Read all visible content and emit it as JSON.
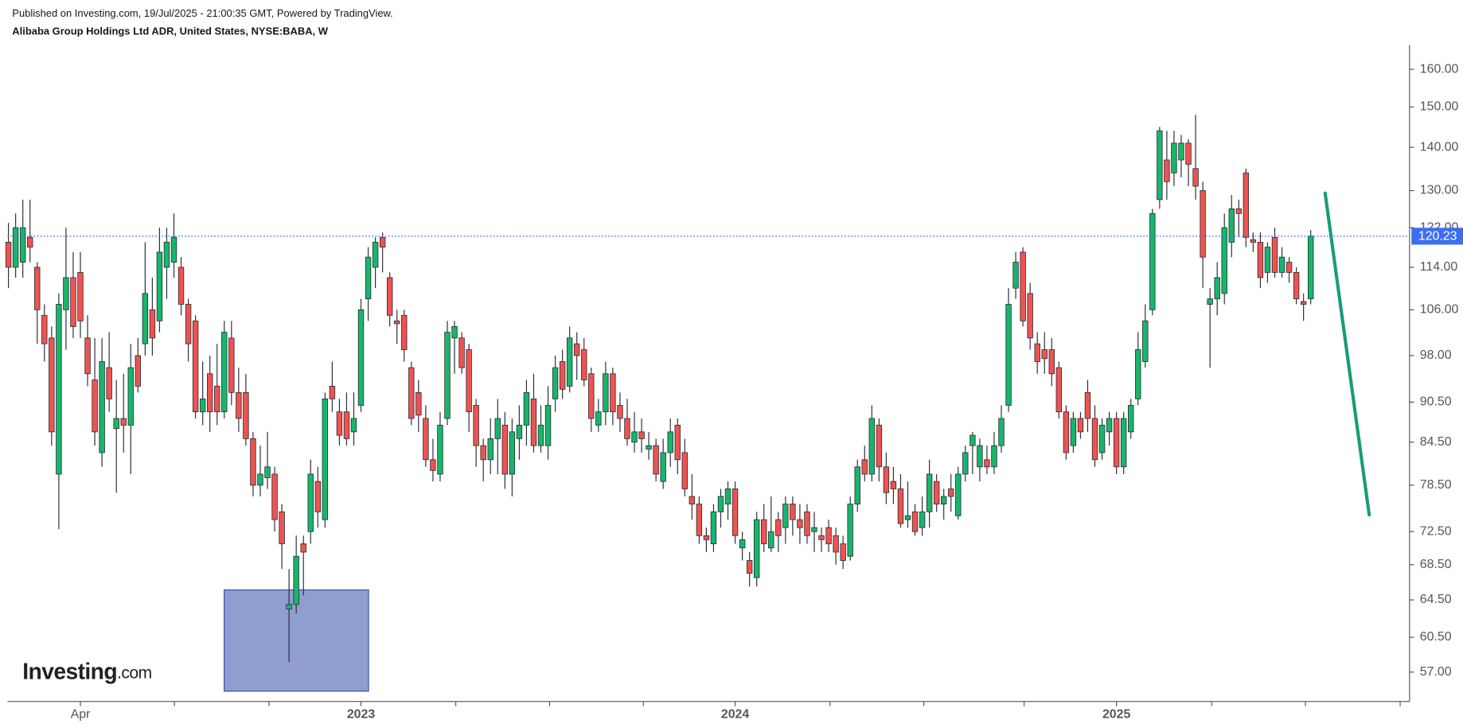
{
  "header": {
    "published": "Published on Investing.com, 19/Jul/2025 - 21:00:35 GMT, Powered by TradingView.",
    "title": "Alibaba Group Holdings Ltd ADR, United States, NYSE:BABA, W"
  },
  "logo": {
    "brand": "Investing",
    "suffix": ".com"
  },
  "chart_data": {
    "type": "candlestick",
    "log_scale": true,
    "up_color": "#18b66a",
    "down_color": "#ef5350",
    "price_line_color": "#3d6ef0",
    "ylim": [
      54.2,
      166.8
    ],
    "yticks": [
      {
        "value": 57,
        "label": "57.00"
      },
      {
        "value": 60.5,
        "label": "60.50"
      },
      {
        "value": 64.5,
        "label": "64.50"
      },
      {
        "value": 68.5,
        "label": "68.50"
      },
      {
        "value": 72.5,
        "label": "72.50"
      },
      {
        "value": 78.5,
        "label": "78.50"
      },
      {
        "value": 84.5,
        "label": "84.50"
      },
      {
        "value": 90.5,
        "label": "90.50"
      },
      {
        "value": 98,
        "label": "98.00"
      },
      {
        "value": 106,
        "label": "106.00"
      },
      {
        "value": 114,
        "label": "114.00"
      },
      {
        "value": 122,
        "label": "122.00"
      },
      {
        "value": 130,
        "label": "130.00"
      },
      {
        "value": 140,
        "label": "140.00"
      },
      {
        "value": 150,
        "label": "150.00"
      },
      {
        "value": 160,
        "label": "160.00"
      }
    ],
    "categories": [
      null,
      null,
      null,
      null,
      null,
      null,
      null,
      null,
      null,
      null,
      "Apr",
      null,
      null,
      null,
      null,
      null,
      null,
      null,
      null,
      null,
      null,
      null,
      null,
      null,
      null,
      null,
      null,
      null,
      null,
      null,
      null,
      null,
      null,
      null,
      null,
      null,
      null,
      null,
      null,
      null,
      null,
      null,
      null,
      null,
      null,
      null,
      null,
      null,
      null,
      "2023",
      null,
      null,
      null,
      null,
      null,
      null,
      null,
      null,
      null,
      null,
      null,
      null,
      null,
      null,
      null,
      null,
      null,
      null,
      null,
      null,
      null,
      null,
      null,
      null,
      null,
      null,
      null,
      null,
      null,
      null,
      null,
      null,
      null,
      null,
      null,
      null,
      null,
      null,
      null,
      null,
      null,
      null,
      null,
      null,
      null,
      null,
      null,
      null,
      null,
      null,
      null,
      "2024",
      null,
      null,
      null,
      null,
      null,
      null,
      null,
      null,
      null,
      null,
      null,
      null,
      null,
      null,
      null,
      null,
      null,
      null,
      null,
      null,
      null,
      null,
      null,
      null,
      null,
      null,
      null,
      null,
      null,
      null,
      null,
      null,
      null,
      null,
      null,
      null,
      null,
      null,
      null,
      null,
      null,
      null,
      null,
      null,
      null,
      null,
      null,
      null,
      null,
      null,
      null,
      null,
      "2025",
      null,
      null,
      null,
      null,
      null,
      null,
      null,
      null,
      null,
      null,
      null,
      null,
      null,
      null,
      null,
      null,
      null,
      null,
      null,
      null,
      null,
      null,
      null,
      null,
      null,
      null,
      null
    ],
    "open": [
      119,
      114,
      115,
      120,
      114,
      105,
      101,
      80,
      106,
      112,
      113,
      101,
      94,
      83,
      96,
      86.5,
      88,
      87,
      98,
      100,
      106,
      104,
      114,
      115,
      114,
      107,
      104,
      89,
      95,
      93,
      89,
      101,
      92,
      92,
      85,
      78.5,
      79.5,
      80,
      75,
      63.5,
      64,
      71,
      72.5,
      79,
      74,
      93,
      89,
      89,
      86,
      90,
      108,
      114,
      120,
      112,
      104,
      105,
      96,
      92,
      88,
      82,
      80,
      88,
      101,
      101,
      99,
      90,
      84,
      82,
      85,
      87,
      80,
      85,
      87,
      91,
      84,
      84,
      91,
      97,
      93,
      100,
      99,
      95,
      87,
      89,
      95,
      90,
      88,
      84.5,
      86,
      83.5,
      84,
      79,
      83,
      87,
      83,
      77,
      76,
      72,
      71,
      75,
      76,
      78,
      70.5,
      69,
      67,
      74,
      70.5,
      74,
      73,
      76,
      74,
      75,
      72.5,
      72,
      73,
      72,
      71,
      69.5,
      76,
      82,
      80,
      87,
      81,
      79,
      78,
      74,
      75,
      73,
      75,
      79,
      76,
      78,
      74.5,
      80,
      84,
      81,
      82,
      81,
      84,
      90,
      110,
      117,
      109,
      100,
      99,
      99,
      96,
      89,
      84,
      88,
      92,
      88,
      83,
      86,
      88,
      81,
      86,
      91,
      97,
      106,
      128,
      137,
      134,
      137,
      141,
      135,
      130,
      107,
      108,
      109,
      119,
      126,
      134,
      119.5,
      119,
      113,
      120,
      113,
      115,
      113,
      107.5,
      108
    ],
    "high": [
      123,
      125,
      128,
      128,
      115,
      107,
      103,
      109,
      122,
      117,
      117,
      105,
      101,
      101,
      102,
      94,
      95,
      100,
      101,
      119,
      112,
      122,
      122,
      125,
      116,
      108,
      105,
      97,
      98,
      100,
      104,
      104,
      96,
      95,
      86,
      84,
      86,
      81,
      76,
      68,
      72,
      72,
      82,
      81,
      92,
      97,
      91,
      92,
      92,
      108,
      118,
      120,
      121,
      113,
      106,
      106,
      97,
      94,
      90,
      85,
      89,
      104,
      104,
      102,
      100,
      91,
      85,
      88,
      91,
      89,
      88,
      90,
      94,
      95,
      90,
      93,
      98,
      99,
      103,
      102,
      101,
      96,
      91,
      97,
      96,
      92,
      91,
      89,
      88,
      86,
      85,
      85,
      88,
      88,
      85,
      80,
      77,
      73,
      76,
      78,
      79,
      79,
      72.5,
      70,
      75,
      76,
      77,
      75,
      77,
      77,
      76,
      76,
      75,
      73,
      74,
      73,
      72,
      77,
      82,
      84,
      90,
      88,
      83,
      81,
      80,
      79,
      76,
      77,
      82,
      80,
      78,
      80,
      81,
      84,
      86,
      85,
      84,
      86,
      90,
      110,
      117,
      118,
      111,
      102,
      102,
      101,
      97,
      90,
      89,
      89,
      94,
      90,
      88,
      89,
      89,
      89,
      91,
      102,
      107,
      126,
      145,
      144,
      144,
      143,
      142,
      148,
      132,
      110,
      115,
      125,
      129,
      128,
      135,
      121,
      121,
      119,
      122,
      118,
      116,
      114,
      109,
      121.5
    ],
    "low": [
      110,
      112,
      112,
      115,
      100,
      97,
      84,
      72.8,
      99,
      101,
      101,
      93,
      84,
      81,
      89,
      77.5,
      83,
      80,
      92,
      98,
      98,
      102,
      108,
      112,
      105,
      97,
      88,
      87,
      86,
      87,
      88,
      90,
      86,
      84,
      77,
      77,
      78,
      72.5,
      68,
      58,
      63,
      65,
      71,
      73,
      73,
      89,
      84,
      84,
      84,
      89,
      104,
      110,
      113,
      103,
      100,
      97,
      87,
      86,
      81,
      79,
      79,
      87,
      95,
      95,
      86,
      81,
      79,
      80,
      80,
      78,
      77,
      82,
      84,
      83,
      83,
      82,
      89,
      91,
      92,
      94,
      93,
      86,
      86,
      87,
      87,
      86,
      84,
      83,
      83,
      82,
      79,
      78,
      81,
      80,
      77,
      74,
      71,
      70,
      70,
      73,
      74,
      71,
      69,
      66,
      66,
      70,
      70,
      70,
      71,
      72,
      71,
      71,
      70,
      70,
      70,
      68.5,
      68,
      69,
      75,
      79,
      79,
      79,
      76,
      76,
      73,
      73,
      72,
      72,
      73,
      75,
      74,
      75,
      74,
      79,
      80,
      79,
      80,
      80,
      83,
      89,
      108,
      103,
      99,
      95,
      95,
      93,
      88,
      82,
      83,
      85,
      86,
      81,
      82,
      84,
      80,
      80,
      85,
      90,
      96,
      105,
      126,
      128,
      131,
      133,
      131,
      128,
      110,
      96,
      105,
      107,
      116,
      120,
      118,
      117,
      110,
      111,
      112,
      112,
      111,
      107,
      104,
      107
    ],
    "close": [
      114,
      122,
      122,
      118,
      106,
      100,
      86,
      107,
      112,
      103,
      104,
      95,
      86,
      97,
      91,
      88,
      87,
      96,
      93,
      109,
      101,
      117,
      119,
      120,
      107,
      100,
      89,
      91,
      89,
      89,
      102,
      92,
      88,
      85,
      78.5,
      80,
      81,
      74,
      71,
      64,
      69.5,
      70,
      80,
      75,
      91,
      91,
      85.5,
      85,
      88,
      106,
      116,
      119,
      118,
      105,
      103.5,
      99,
      88,
      88.5,
      82,
      80.5,
      87,
      102,
      103,
      96,
      89,
      84,
      82,
      85,
      88,
      80,
      86,
      87,
      92,
      84,
      87,
      90,
      96,
      92.5,
      101,
      98,
      94,
      88,
      89,
      95,
      89,
      88,
      85,
      86,
      85,
      84,
      80,
      83,
      86,
      82,
      78,
      76,
      72,
      71.5,
      75,
      77,
      78,
      72,
      71.5,
      67.5,
      74,
      71,
      72.5,
      72,
      76,
      74,
      73,
      72,
      73,
      71.5,
      71,
      70,
      69,
      76,
      81,
      80,
      88,
      81,
      77.5,
      78,
      73.5,
      74.5,
      72.5,
      75,
      80,
      76,
      77,
      77,
      80,
      83,
      85.5,
      84,
      81,
      84,
      88,
      107,
      115,
      104,
      101,
      97,
      97.5,
      95,
      89,
      83,
      88,
      86,
      88,
      82,
      87,
      88,
      81,
      88,
      90,
      99,
      104,
      125,
      144,
      132,
      141,
      141,
      136,
      131,
      116,
      108,
      112,
      122,
      126,
      125,
      120,
      119,
      112,
      118,
      113,
      116,
      113,
      108,
      107,
      120.23
    ]
  }
}
